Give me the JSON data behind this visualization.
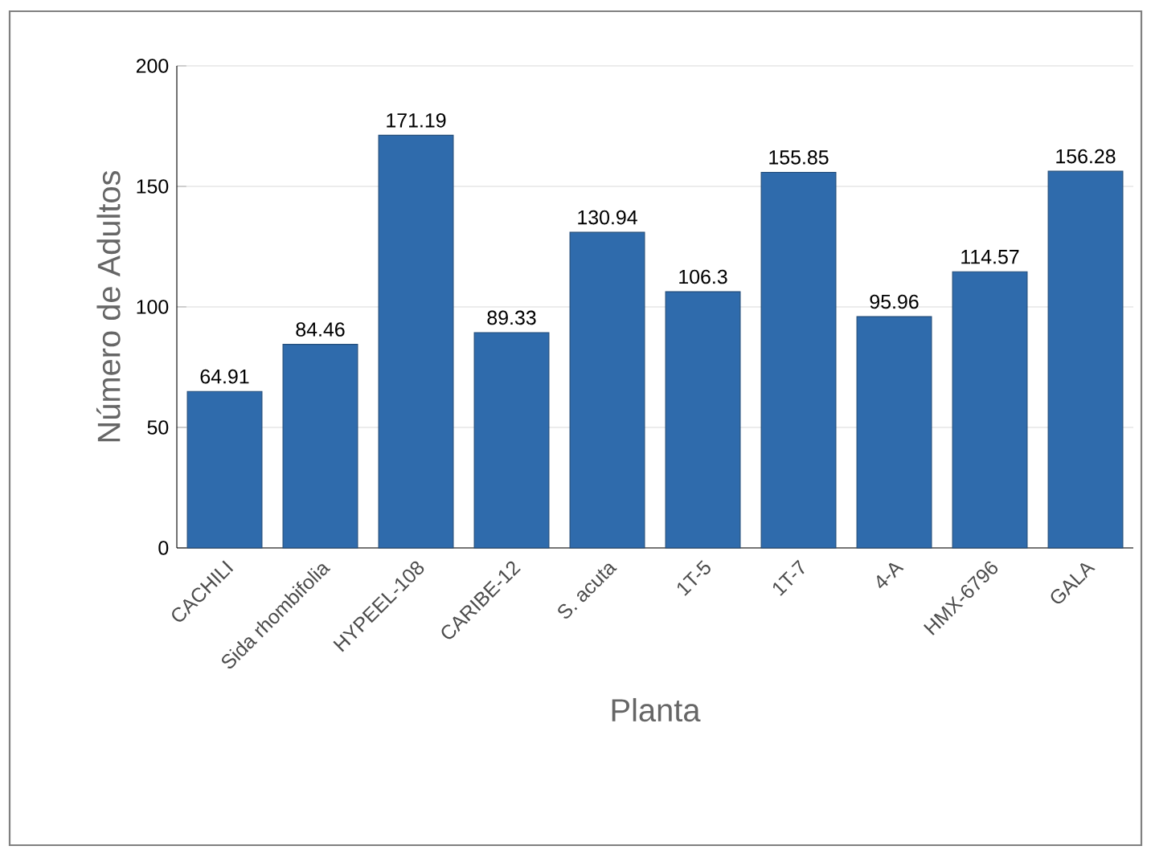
{
  "chart_data": {
    "type": "bar",
    "categories": [
      "CACHILI",
      "Sida rhombifolia",
      "HYPEEL-108",
      "CARIBE-12",
      "S. acuta",
      "1T-5",
      "1T-7",
      "4-A",
      "HMX-6796",
      "GALA"
    ],
    "values": [
      64.91,
      84.46,
      171.19,
      89.33,
      130.94,
      106.3,
      155.85,
      95.96,
      114.57,
      156.28
    ],
    "color": "#2f6bac",
    "xlabel": "Planta",
    "ylabel": "Número de Adultos",
    "ylim": [
      0,
      200
    ],
    "yticks": [
      0,
      50,
      100,
      150,
      200
    ],
    "grid": "y",
    "data_labels": true
  }
}
